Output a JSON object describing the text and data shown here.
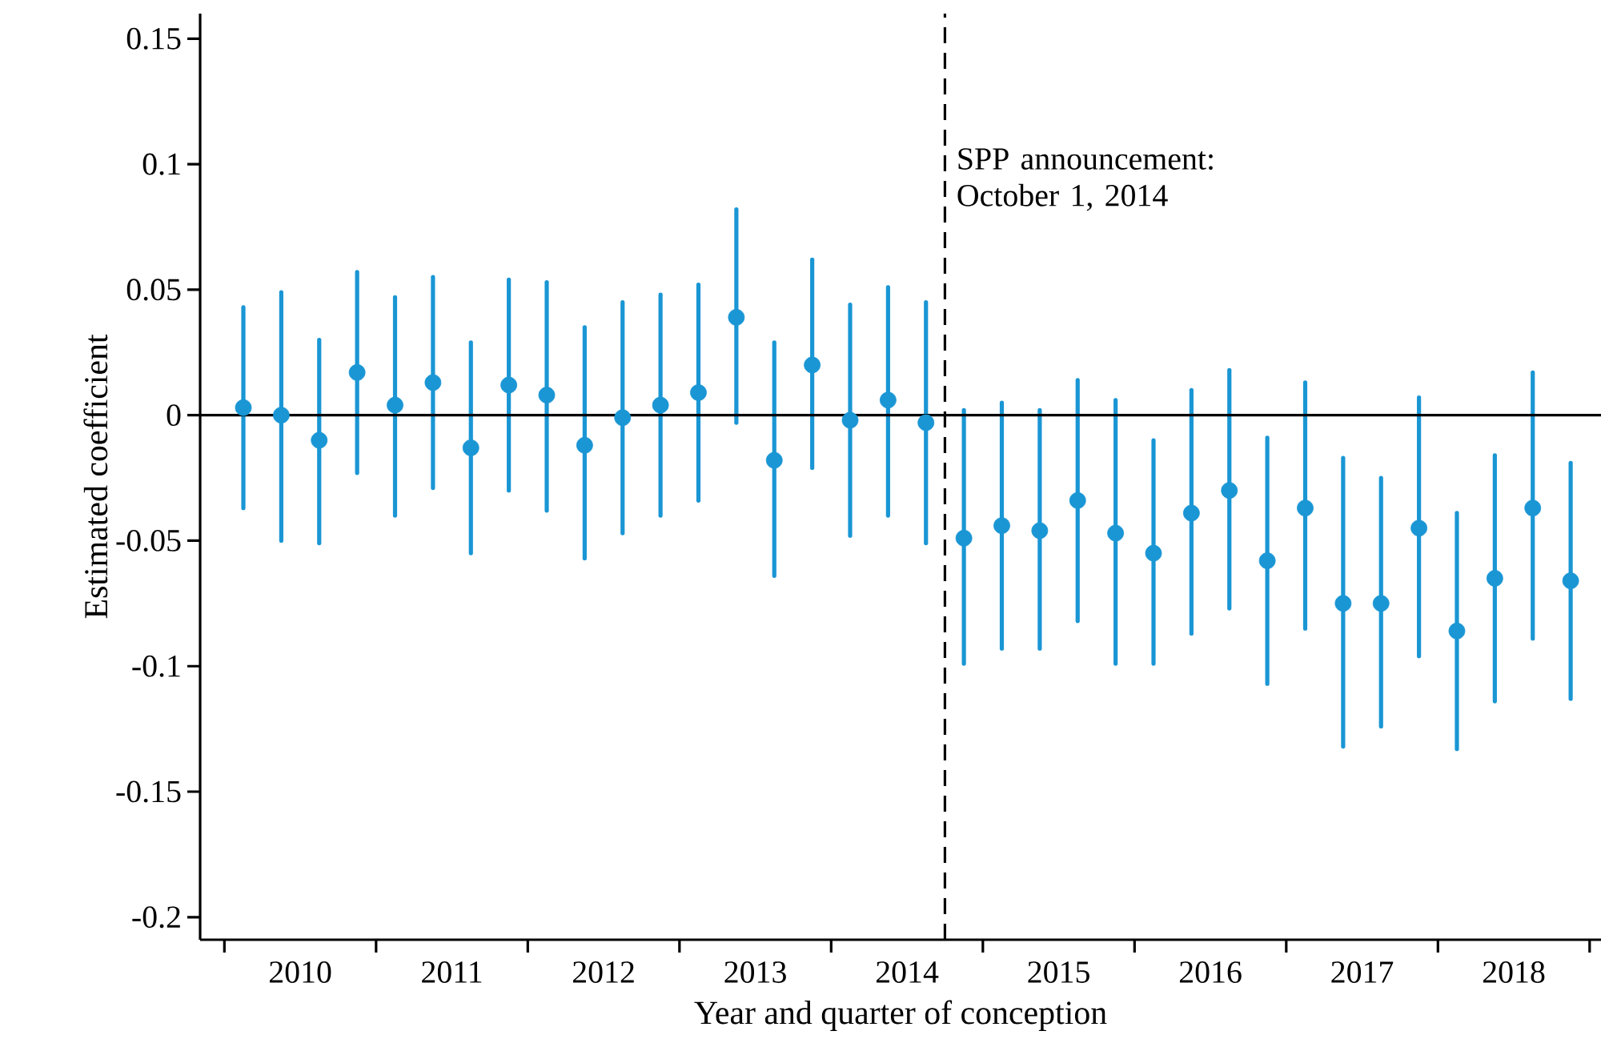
{
  "chart_data": {
    "type": "scatter",
    "xlabel": "Year and quarter of conception",
    "ylabel": "Estimated coefficient",
    "x": [
      2010.0,
      2010.25,
      2010.5,
      2010.75,
      2011.0,
      2011.25,
      2011.5,
      2011.75,
      2012.0,
      2012.25,
      2012.5,
      2012.75,
      2013.0,
      2013.25,
      2013.5,
      2013.75,
      2014.0,
      2014.25,
      2014.5,
      2014.75,
      2015.0,
      2015.25,
      2015.5,
      2015.75,
      2016.0,
      2016.25,
      2016.5,
      2016.75,
      2017.0,
      2017.25,
      2017.5,
      2017.75,
      2018.0,
      2018.25,
      2018.5,
      2018.75
    ],
    "values": [
      0.003,
      0.0,
      -0.01,
      0.017,
      0.004,
      0.013,
      -0.013,
      0.012,
      0.008,
      -0.012,
      -0.001,
      0.004,
      0.009,
      0.039,
      -0.018,
      0.02,
      -0.002,
      0.006,
      -0.003,
      -0.049,
      -0.044,
      -0.046,
      -0.034,
      -0.047,
      -0.055,
      -0.039,
      -0.03,
      -0.058,
      -0.037,
      -0.075,
      -0.075,
      -0.045,
      -0.086,
      -0.065,
      -0.037,
      -0.066
    ],
    "errors": [
      [
        -0.037,
        0.043
      ],
      [
        -0.05,
        0.049
      ],
      [
        -0.051,
        0.03
      ],
      [
        -0.023,
        0.057
      ],
      [
        -0.04,
        0.047
      ],
      [
        -0.029,
        0.055
      ],
      [
        -0.055,
        0.029
      ],
      [
        -0.03,
        0.054
      ],
      [
        -0.038,
        0.053
      ],
      [
        -0.057,
        0.035
      ],
      [
        -0.047,
        0.045
      ],
      [
        -0.04,
        0.048
      ],
      [
        -0.034,
        0.052
      ],
      [
        -0.003,
        0.082
      ],
      [
        -0.064,
        0.029
      ],
      [
        -0.021,
        0.062
      ],
      [
        -0.048,
        0.044
      ],
      [
        -0.04,
        0.051
      ],
      [
        -0.051,
        0.045
      ],
      [
        -0.099,
        0.002
      ],
      [
        -0.093,
        0.005
      ],
      [
        -0.093,
        0.002
      ],
      [
        -0.082,
        0.014
      ],
      [
        -0.099,
        0.006
      ],
      [
        -0.099,
        -0.01
      ],
      [
        -0.087,
        0.01
      ],
      [
        -0.077,
        0.018
      ],
      [
        -0.107,
        -0.009
      ],
      [
        -0.085,
        0.013
      ],
      [
        -0.132,
        -0.017
      ],
      [
        -0.124,
        -0.025
      ],
      [
        -0.096,
        0.007
      ],
      [
        -0.133,
        -0.039
      ],
      [
        -0.114,
        -0.016
      ],
      [
        -0.089,
        0.017
      ],
      [
        -0.113,
        -0.019
      ]
    ],
    "color": "#1a96d4",
    "marker": "circle",
    "xlim": [
      2009.715,
      2018.95
    ],
    "ylim": [
      -0.209,
      0.16
    ],
    "xticks": [
      {
        "value": 2009.875,
        "label": null
      },
      {
        "value": 2010.875,
        "label": null
      },
      {
        "value": 2011.875,
        "label": null
      },
      {
        "value": 2012.875,
        "label": null
      },
      {
        "value": 2013.875,
        "label": null
      },
      {
        "value": 2014.875,
        "label": null
      },
      {
        "value": 2015.875,
        "label": null
      },
      {
        "value": 2016.875,
        "label": null
      },
      {
        "value": 2017.875,
        "label": null
      },
      {
        "value": 2018.875,
        "label": null
      },
      {
        "value": 2010.375,
        "label": "2010"
      },
      {
        "value": 2011.375,
        "label": "2011"
      },
      {
        "value": 2012.375,
        "label": "2012"
      },
      {
        "value": 2013.375,
        "label": "2013"
      },
      {
        "value": 2014.375,
        "label": "2014"
      },
      {
        "value": 2015.375,
        "label": "2015"
      },
      {
        "value": 2016.375,
        "label": "2016"
      },
      {
        "value": 2017.375,
        "label": "2017"
      },
      {
        "value": 2018.375,
        "label": "2018"
      }
    ],
    "yticks": [
      0.15,
      0.1,
      0.05,
      0,
      -0.05,
      -0.1,
      -0.15,
      -0.2
    ],
    "ref_lines": [
      {
        "axis": "y",
        "value": 0,
        "color": "#000000",
        "line_style": "solid"
      },
      {
        "axis": "x",
        "value": 2014.625,
        "label": "SPP announcement: October 1, 2014",
        "color": "#000000",
        "line_style": "dashed"
      }
    ]
  }
}
